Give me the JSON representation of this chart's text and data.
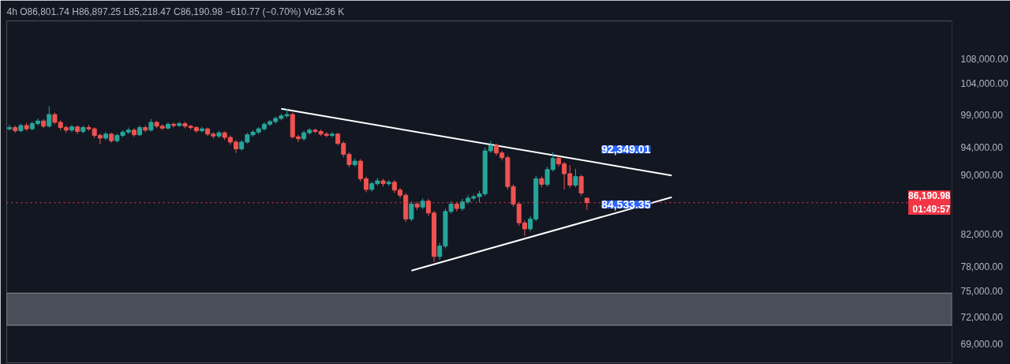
{
  "chart_data": {
    "type": "candlestick",
    "title": "4h  O86,801.74  H86,897.25  L85,218.47  C86,190.98  −610.77 (−0.70%)  Vol2.36 K",
    "categories": [
      null,
      null,
      null,
      null,
      null,
      null,
      null,
      null,
      null,
      null,
      null,
      null,
      null,
      null,
      null,
      null,
      null,
      null,
      null,
      null,
      null,
      null,
      null,
      null,
      null,
      null,
      null,
      null,
      null,
      null,
      null,
      null,
      null,
      null,
      null,
      null,
      null,
      null,
      null,
      null,
      null,
      null,
      null,
      null,
      null,
      null,
      null,
      null,
      null,
      null,
      null,
      null,
      null,
      null,
      null,
      null,
      null,
      null,
      null,
      null,
      null,
      null,
      null,
      null,
      null,
      null,
      null,
      null,
      null,
      null,
      null,
      null,
      null,
      null,
      null,
      null,
      null,
      null,
      null,
      null,
      null,
      null,
      null,
      null,
      null,
      null,
      null,
      null,
      null,
      null,
      null,
      null,
      null,
      null,
      null,
      null,
      null,
      null,
      null,
      null,
      null,
      null,
      null,
      null,
      null,
      null,
      null,
      null,
      null,
      null,
      null,
      null,
      null,
      null,
      null,
      null,
      null,
      null,
      null,
      null,
      null,
      null,
      null,
      null,
      null,
      null,
      null,
      null,
      null,
      null,
      null,
      null,
      null,
      null,
      null,
      null,
      null,
      null,
      null,
      null,
      null,
      null,
      null,
      null,
      null,
      null,
      null,
      null,
      null,
      null,
      null,
      null,
      null,
      null,
      null,
      null,
      null,
      null,
      null,
      null,
      null,
      null,
      null,
      null,
      null,
      null,
      null
    ],
    "ohlc": [
      [
        96800,
        97400,
        96500,
        97000
      ],
      [
        97000,
        97300,
        96200,
        96500
      ],
      [
        96500,
        97600,
        96300,
        97300
      ],
      [
        97300,
        97700,
        96500,
        96800
      ],
      [
        96800,
        97900,
        96600,
        97600
      ],
      [
        97600,
        98400,
        97300,
        98000
      ],
      [
        98000,
        98300,
        96900,
        97200
      ],
      [
        97200,
        100300,
        97000,
        99000
      ],
      [
        99000,
        99300,
        97500,
        97800
      ],
      [
        97800,
        98100,
        96600,
        97000
      ],
      [
        97000,
        97300,
        96200,
        96600
      ],
      [
        96600,
        97400,
        96300,
        97100
      ],
      [
        97100,
        97300,
        96000,
        96400
      ],
      [
        96400,
        97300,
        96100,
        97000
      ],
      [
        97000,
        97400,
        96500,
        96800
      ],
      [
        96800,
        97000,
        95400,
        95800
      ],
      [
        95800,
        96100,
        94500,
        95400
      ],
      [
        95400,
        96300,
        95100,
        96000
      ],
      [
        96000,
        96200,
        94700,
        95000
      ],
      [
        95000,
        96100,
        94700,
        95800
      ],
      [
        95800,
        96600,
        95500,
        96300
      ],
      [
        96300,
        97000,
        96000,
        96600
      ],
      [
        96600,
        96900,
        95600,
        95900
      ],
      [
        95900,
        97300,
        95700,
        97000
      ],
      [
        97000,
        97300,
        96300,
        96600
      ],
      [
        96600,
        98300,
        96400,
        97800
      ],
      [
        97800,
        98000,
        96900,
        97200
      ],
      [
        97200,
        97500,
        96600,
        96900
      ],
      [
        96900,
        97800,
        96700,
        97500
      ],
      [
        97500,
        97800,
        97000,
        97300
      ],
      [
        97300,
        97900,
        97100,
        97600
      ],
      [
        97600,
        97900,
        96900,
        97200
      ],
      [
        97200,
        97400,
        96700,
        97000
      ],
      [
        97000,
        97200,
        96200,
        96500
      ],
      [
        96500,
        97100,
        96300,
        96800
      ],
      [
        96800,
        97000,
        95700,
        96000
      ],
      [
        96000,
        96300,
        95300,
        95700
      ],
      [
        95700,
        96500,
        95400,
        96200
      ],
      [
        96200,
        96400,
        95100,
        95500
      ],
      [
        95500,
        95800,
        94400,
        94800
      ],
      [
        94800,
        95100,
        93200,
        93800
      ],
      [
        93800,
        95100,
        93500,
        94800
      ],
      [
        94800,
        96200,
        94600,
        95900
      ],
      [
        95900,
        96600,
        95600,
        96300
      ],
      [
        96300,
        97100,
        96000,
        96800
      ],
      [
        96800,
        97800,
        96500,
        97500
      ],
      [
        97500,
        98200,
        97200,
        97900
      ],
      [
        97900,
        98700,
        97600,
        98400
      ],
      [
        98400,
        99100,
        98100,
        98800
      ],
      [
        98800,
        99900,
        98500,
        99000
      ],
      [
        99000,
        99300,
        95300,
        95600
      ],
      [
        95600,
        95900,
        94800,
        95300
      ],
      [
        95300,
        96500,
        95000,
        96200
      ],
      [
        96200,
        96900,
        95900,
        96600
      ],
      [
        96600,
        96800,
        96100,
        96400
      ],
      [
        96400,
        96700,
        95700,
        96000
      ],
      [
        96000,
        96300,
        95500,
        95800
      ],
      [
        95800,
        96300,
        95500,
        96000
      ],
      [
        96000,
        96200,
        94300,
        94600
      ],
      [
        94600,
        94900,
        92600,
        93000
      ],
      [
        93000,
        93300,
        91100,
        91500
      ],
      [
        91500,
        92400,
        91200,
        92000
      ],
      [
        92000,
        92300,
        89100,
        89500
      ],
      [
        89500,
        89800,
        87600,
        88000
      ],
      [
        88000,
        89100,
        87700,
        88800
      ],
      [
        88800,
        89600,
        88500,
        89200
      ],
      [
        89200,
        89500,
        88400,
        88800
      ],
      [
        88800,
        89300,
        88500,
        89000
      ],
      [
        89000,
        89300,
        87500,
        87900
      ],
      [
        87900,
        88200,
        86800,
        87200
      ],
      [
        87200,
        87500,
        83600,
        84000
      ],
      [
        84000,
        86400,
        83700,
        86000
      ],
      [
        86000,
        86300,
        85200,
        85600
      ],
      [
        85600,
        86800,
        85300,
        86400
      ],
      [
        86400,
        86700,
        84400,
        84800
      ],
      [
        84800,
        85100,
        78500,
        79200
      ],
      [
        79200,
        80900,
        78800,
        80500
      ],
      [
        80500,
        85400,
        80200,
        85000
      ],
      [
        85000,
        86400,
        84700,
        86000
      ],
      [
        86000,
        86300,
        85000,
        85400
      ],
      [
        85400,
        86700,
        85100,
        86300
      ],
      [
        86300,
        87200,
        86000,
        86800
      ],
      [
        86800,
        87300,
        86500,
        87000
      ],
      [
        87000,
        87800,
        86200,
        87400
      ],
      [
        87400,
        94000,
        87100,
        93500
      ],
      [
        93500,
        95000,
        93200,
        94300
      ],
      [
        94300,
        94600,
        92800,
        93200
      ],
      [
        93200,
        93500,
        92100,
        92500
      ],
      [
        92500,
        92800,
        88000,
        88400
      ],
      [
        88400,
        88700,
        85600,
        86000
      ],
      [
        86000,
        86300,
        83100,
        83500
      ],
      [
        83500,
        83800,
        81800,
        82700
      ],
      [
        82700,
        84400,
        82400,
        84000
      ],
      [
        84000,
        89900,
        83700,
        89500
      ],
      [
        89500,
        89800,
        88300,
        88700
      ],
      [
        88700,
        91200,
        88400,
        90800
      ],
      [
        90800,
        93300,
        90500,
        92400
      ],
      [
        92400,
        92700,
        91200,
        91600
      ],
      [
        91600,
        91900,
        88000,
        90200
      ],
      [
        90200,
        91400,
        88200,
        88600
      ],
      [
        88600,
        90900,
        88300,
        89800
      ],
      [
        89800,
        90100,
        87100,
        87500
      ],
      [
        86801.74,
        86897.25,
        85218.47,
        86190.98
      ],
      null,
      null,
      null,
      null,
      null,
      null,
      null,
      null,
      null,
      null,
      null,
      null,
      null,
      null,
      null,
      null,
      null,
      null,
      null,
      null,
      null,
      null,
      null,
      null,
      null,
      null,
      null,
      null,
      null,
      null,
      null,
      null,
      null,
      null,
      null,
      null,
      null,
      null,
      null,
      null,
      null,
      null,
      null,
      null,
      null,
      null,
      null,
      null,
      null,
      null,
      null,
      null,
      null,
      null,
      null,
      null,
      null,
      null,
      null,
      null,
      null,
      null,
      null,
      null
    ],
    "series": [
      {
        "type": "line",
        "color": "#ffffff",
        "values": [
          null,
          null,
          null,
          null,
          null,
          null,
          null,
          null,
          null,
          null,
          null,
          null,
          null,
          null,
          null,
          null,
          null,
          null,
          null,
          null,
          null,
          null,
          null,
          null,
          null,
          null,
          null,
          null,
          null,
          null,
          null,
          null,
          null,
          null,
          null,
          null,
          null,
          null,
          null,
          null,
          null,
          null,
          null,
          null,
          null,
          null,
          null,
          null,
          99900,
          null,
          null,
          null,
          null,
          null,
          null,
          null,
          null,
          null,
          null,
          null,
          null,
          null,
          null,
          null,
          null,
          null,
          null,
          null,
          null,
          null,
          null,
          null,
          null,
          null,
          null,
          null,
          null,
          null,
          null,
          null,
          null,
          null,
          null,
          null,
          null,
          null,
          null,
          null,
          null,
          null,
          null,
          null,
          null,
          null,
          null,
          null,
          null,
          null,
          null,
          null,
          null,
          null,
          null,
          null,
          null,
          null,
          null,
          null,
          null,
          null,
          null,
          null,
          null,
          null,
          null,
          null,
          null,
          89950,
          null,
          null,
          null,
          null,
          null,
          null,
          null,
          null,
          null,
          null,
          null,
          null,
          null,
          null,
          null,
          null,
          null,
          null,
          null,
          null,
          null,
          null,
          null,
          null,
          null,
          null,
          null,
          null,
          null,
          null,
          null,
          null,
          null,
          null,
          null,
          null,
          null,
          null,
          null,
          null,
          null,
          null,
          null,
          null,
          null,
          null,
          null,
          null,
          null
        ]
      },
      {
        "type": "line",
        "color": "#ffffff",
        "values": [
          null,
          null,
          null,
          null,
          null,
          null,
          null,
          null,
          null,
          null,
          null,
          null,
          null,
          null,
          null,
          null,
          null,
          null,
          null,
          null,
          null,
          null,
          null,
          null,
          null,
          null,
          null,
          null,
          null,
          null,
          null,
          null,
          null,
          null,
          null,
          null,
          null,
          null,
          null,
          null,
          null,
          null,
          null,
          null,
          null,
          null,
          null,
          null,
          null,
          null,
          null,
          null,
          null,
          null,
          null,
          null,
          null,
          null,
          null,
          null,
          null,
          null,
          null,
          null,
          null,
          null,
          null,
          null,
          null,
          null,
          null,
          77450,
          null,
          null,
          null,
          null,
          null,
          null,
          null,
          null,
          null,
          null,
          null,
          null,
          null,
          null,
          null,
          null,
          null,
          null,
          null,
          null,
          null,
          null,
          null,
          null,
          null,
          null,
          null,
          null,
          null,
          null,
          null,
          null,
          null,
          null,
          null,
          null,
          null,
          null,
          null,
          null,
          null,
          null,
          null,
          null,
          null,
          86930,
          null,
          null,
          null,
          null,
          null,
          null,
          null,
          null,
          null,
          null,
          null,
          null,
          null,
          null,
          null,
          null,
          null,
          null,
          null,
          null,
          null,
          null,
          null,
          null,
          null,
          null,
          null,
          null,
          null,
          null,
          null,
          null,
          null,
          null,
          null,
          null,
          null,
          null,
          null,
          null,
          null,
          null,
          null,
          null,
          null,
          null,
          null,
          null,
          null
        ]
      }
    ],
    "annotations": [
      "92,349.01",
      "84,533.35"
    ],
    "ref_lines": [
      {
        "axis": "y",
        "value": 86190.98,
        "label": "86,190.98\n01:49:57",
        "color": "#f23645",
        "line_style": "dotted"
      }
    ],
    "bands": [
      {
        "axis": "y",
        "from": 71060,
        "to": 74750,
        "color": "#4a4e58"
      }
    ],
    "log": true,
    "ylim": [
      67000,
      114700
    ],
    "yticks": [
      {
        "value": 69000,
        "label": "69,000.00"
      },
      {
        "value": 72000,
        "label": "72,000.00"
      },
      {
        "value": 75000,
        "label": "75,000.00"
      },
      {
        "value": 78000,
        "label": "78,000.00"
      },
      {
        "value": 82000,
        "label": "82,000.00"
      },
      {
        "value": 90000,
        "label": "90,000.00"
      },
      {
        "value": 94000,
        "label": "94,000.00"
      },
      {
        "value": 99000,
        "label": "99,000.00"
      },
      {
        "value": 104000,
        "label": "104,000.00"
      },
      {
        "value": 108000,
        "label": "108,000.00"
      }
    ],
    "tick_labels": "y"
  }
}
